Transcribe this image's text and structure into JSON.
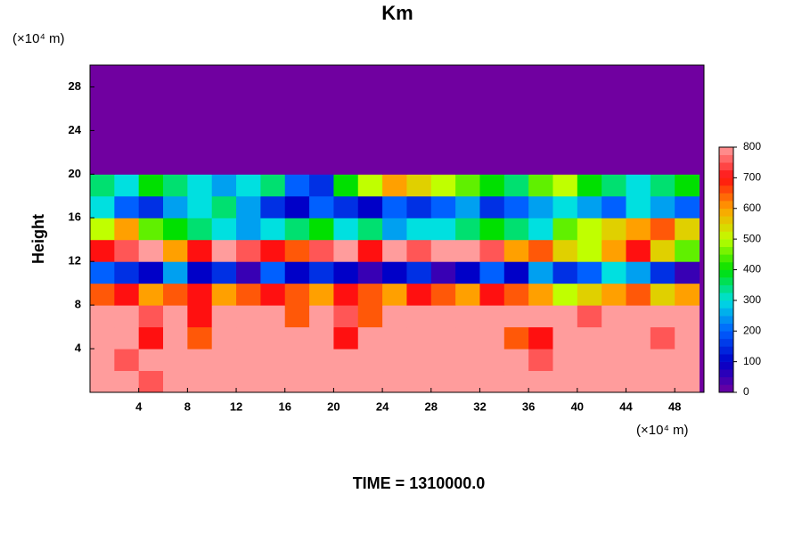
{
  "chart_data": {
    "type": "heatmap",
    "title": "Km",
    "y_label": "Height",
    "y_unit": "(×10⁴ m)",
    "x_unit": "(×10⁴ m)",
    "footer": "TIME = 1310000.0",
    "xlim": [
      0,
      50.4
    ],
    "ylim": [
      0,
      30
    ],
    "xticks": [
      4,
      8,
      12,
      16,
      20,
      24,
      28,
      32,
      36,
      40,
      44,
      48
    ],
    "yticks": [
      4,
      8,
      12,
      16,
      20,
      24,
      28
    ],
    "x_edges": [
      0,
      50
    ],
    "y_edges": [
      0,
      30
    ],
    "z": [
      [
        800,
        800,
        750,
        800,
        800,
        800,
        800,
        800,
        800,
        800,
        800,
        800,
        800,
        800,
        800,
        800,
        800,
        800,
        800,
        800,
        800,
        800,
        800,
        800,
        800
      ],
      [
        800,
        750,
        800,
        800,
        800,
        800,
        800,
        800,
        800,
        800,
        800,
        800,
        800,
        800,
        800,
        800,
        800,
        800,
        750,
        800,
        800,
        800,
        800,
        800,
        800
      ],
      [
        800,
        800,
        700,
        800,
        650,
        800,
        800,
        800,
        800,
        800,
        700,
        800,
        800,
        800,
        800,
        800,
        800,
        650,
        700,
        800,
        800,
        800,
        800,
        750,
        800
      ],
      [
        800,
        800,
        750,
        800,
        700,
        800,
        800,
        800,
        650,
        800,
        750,
        650,
        800,
        800,
        800,
        800,
        800,
        800,
        800,
        800,
        750,
        800,
        800,
        800,
        800
      ],
      [
        650,
        700,
        600,
        650,
        700,
        600,
        650,
        700,
        650,
        600,
        700,
        650,
        600,
        700,
        650,
        600,
        700,
        650,
        600,
        500,
        550,
        600,
        650,
        550,
        600
      ],
      [
        200,
        150,
        100,
        250,
        100,
        150,
        50,
        200,
        100,
        150,
        100,
        50,
        100,
        150,
        50,
        100,
        200,
        100,
        250,
        150,
        200,
        300,
        250,
        150,
        50
      ],
      [
        700,
        750,
        800,
        600,
        700,
        800,
        750,
        700,
        650,
        750,
        800,
        700,
        800,
        750,
        800,
        800,
        750,
        600,
        650,
        550,
        500,
        600,
        700,
        550,
        450
      ],
      [
        500,
        600,
        450,
        400,
        350,
        300,
        250,
        300,
        350,
        400,
        300,
        350,
        250,
        300,
        300,
        350,
        400,
        350,
        300,
        450,
        500,
        550,
        600,
        650,
        550
      ],
      [
        300,
        200,
        150,
        250,
        300,
        350,
        250,
        150,
        100,
        200,
        150,
        100,
        200,
        150,
        200,
        250,
        150,
        200,
        250,
        300,
        250,
        200,
        300,
        250,
        200
      ],
      [
        350,
        300,
        400,
        350,
        300,
        250,
        300,
        350,
        200,
        150,
        400,
        500,
        600,
        550,
        500,
        450,
        400,
        350,
        450,
        500,
        400,
        350,
        300,
        350,
        400
      ],
      [
        0,
        0,
        0,
        0,
        0,
        0,
        0,
        0,
        0,
        0,
        0,
        0,
        0,
        0,
        0,
        0,
        0,
        0,
        0,
        0,
        0,
        0,
        0,
        0,
        0
      ],
      [
        0,
        0,
        0,
        0,
        0,
        0,
        0,
        0,
        0,
        0,
        0,
        0,
        0,
        0,
        0,
        0,
        0,
        0,
        0,
        0,
        0,
        0,
        0,
        0,
        0
      ],
      [
        0,
        0,
        0,
        0,
        0,
        0,
        0,
        0,
        0,
        0,
        0,
        0,
        0,
        0,
        0,
        0,
        0,
        0,
        0,
        0,
        0,
        0,
        0,
        0,
        0
      ],
      [
        0,
        0,
        0,
        0,
        0,
        0,
        0,
        0,
        0,
        0,
        0,
        0,
        0,
        0,
        0,
        0,
        0,
        0,
        0,
        0,
        0,
        0,
        0,
        0,
        0
      ],
      [
        0,
        0,
        0,
        0,
        0,
        0,
        0,
        0,
        0,
        0,
        0,
        0,
        0,
        0,
        0,
        0,
        0,
        0,
        0,
        0,
        0,
        0,
        0,
        0,
        0
      ]
    ],
    "clim": [
      0,
      800
    ],
    "cticks": [
      0,
      100,
      200,
      300,
      400,
      500,
      600,
      700,
      800
    ],
    "colors": [
      "#7000a0",
      "#0000c8",
      "#0060ff",
      "#00e0e0",
      "#00e000",
      "#c0ff00",
      "#ffa000",
      "#ff1010",
      "#ff9c9c"
    ]
  }
}
